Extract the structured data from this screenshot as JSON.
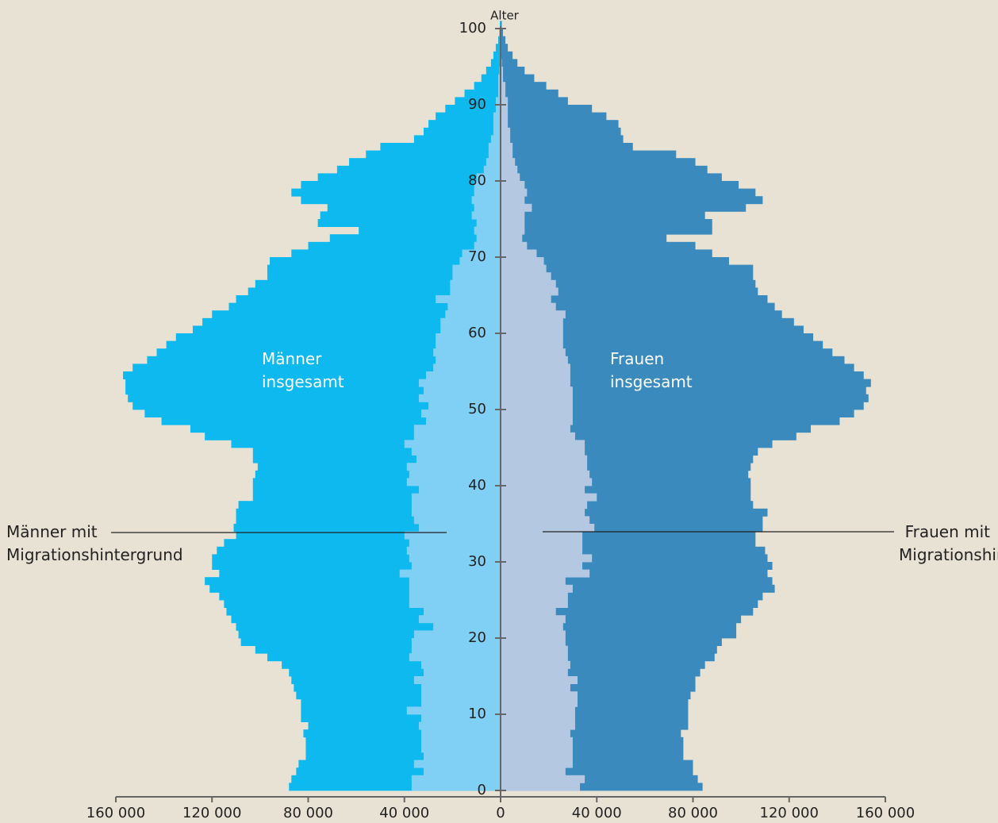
{
  "chart_data": {
    "type": "pyramid",
    "y_label": "Alter",
    "ages": [
      0,
      1,
      2,
      3,
      4,
      5,
      6,
      7,
      8,
      9,
      10,
      11,
      12,
      13,
      14,
      15,
      16,
      17,
      18,
      19,
      20,
      21,
      22,
      23,
      24,
      25,
      26,
      27,
      28,
      29,
      30,
      31,
      32,
      33,
      34,
      35,
      36,
      37,
      38,
      39,
      40,
      41,
      42,
      43,
      44,
      45,
      46,
      47,
      48,
      49,
      50,
      51,
      52,
      53,
      54,
      55,
      56,
      57,
      58,
      59,
      60,
      61,
      62,
      63,
      64,
      65,
      66,
      67,
      68,
      69,
      70,
      71,
      72,
      73,
      74,
      75,
      76,
      77,
      78,
      79,
      80,
      81,
      82,
      83,
      84,
      85,
      86,
      87,
      88,
      89,
      90,
      91,
      92,
      93,
      94,
      95,
      96,
      97,
      98,
      99,
      100
    ],
    "series": [
      {
        "name": "Männer insgesamt",
        "color": "#0db9ee",
        "values": [
          88000,
          87000,
          85000,
          84000,
          81000,
          81000,
          81000,
          82000,
          80000,
          83000,
          83000,
          83000,
          85000,
          86000,
          87000,
          88000,
          91000,
          97000,
          102000,
          108000,
          109000,
          110000,
          112000,
          114000,
          115000,
          117000,
          121000,
          123000,
          117000,
          120000,
          120000,
          118000,
          115000,
          110000,
          111000,
          110000,
          110000,
          109000,
          103000,
          103000,
          103000,
          102000,
          101000,
          103000,
          103000,
          112000,
          123000,
          129000,
          141000,
          148000,
          153000,
          155000,
          156000,
          156000,
          157000,
          153000,
          147000,
          143000,
          139000,
          135000,
          128000,
          124000,
          120000,
          113000,
          110000,
          105000,
          102000,
          97000,
          97000,
          96000,
          87000,
          80000,
          71000,
          59000,
          76000,
          75000,
          72000,
          83000,
          87000,
          83000,
          76000,
          68000,
          63000,
          56000,
          50000,
          36000,
          32000,
          30000,
          27000,
          23000,
          19000,
          15000,
          11000,
          8000,
          6000,
          4000,
          3000,
          2000,
          1000,
          500,
          300
        ]
      },
      {
        "name": "Männer mit Migrationshintergrund",
        "color": "#80cff4",
        "values": [
          37000,
          37000,
          32000,
          36000,
          32000,
          33000,
          33000,
          33000,
          34000,
          33000,
          39000,
          33000,
          33000,
          33000,
          36000,
          32000,
          33000,
          38000,
          37000,
          37000,
          36000,
          28000,
          34000,
          32000,
          38000,
          38000,
          38000,
          38000,
          42000,
          37000,
          38000,
          39000,
          38000,
          40000,
          34000,
          36000,
          37000,
          37000,
          37000,
          34000,
          39000,
          38000,
          39000,
          35000,
          37000,
          40000,
          36000,
          36000,
          31000,
          33000,
          30000,
          34000,
          32000,
          34000,
          31000,
          28000,
          27000,
          28000,
          27000,
          27000,
          25000,
          25000,
          23000,
          22000,
          27000,
          21000,
          21000,
          20000,
          20000,
          17000,
          16000,
          11000,
          10000,
          11000,
          10000,
          12000,
          11000,
          12000,
          11000,
          11000,
          10000,
          7000,
          6000,
          5000,
          5000,
          4000,
          3000,
          3000,
          3000,
          2000,
          2000,
          1000,
          1000,
          1000,
          500,
          300,
          200,
          100,
          0,
          0,
          0
        ]
      },
      {
        "name": "Frauen insgesamt",
        "color": "#3a8abe",
        "values": [
          84000,
          82000,
          80000,
          80000,
          76000,
          76000,
          76000,
          75000,
          78000,
          78000,
          78000,
          78000,
          79000,
          81000,
          81000,
          83000,
          85000,
          89000,
          90000,
          92000,
          98000,
          98000,
          100000,
          105000,
          107000,
          109000,
          114000,
          113000,
          111000,
          113000,
          111000,
          110000,
          106000,
          106000,
          109000,
          109000,
          111000,
          105000,
          104000,
          104000,
          104000,
          103000,
          104000,
          105000,
          107000,
          113000,
          123000,
          129000,
          141000,
          147000,
          151000,
          153000,
          152000,
          154000,
          151000,
          147000,
          143000,
          138000,
          134000,
          130000,
          126000,
          122000,
          117000,
          114000,
          111000,
          107000,
          106000,
          105000,
          105000,
          95000,
          88000,
          81000,
          69000,
          88000,
          88000,
          85000,
          102000,
          109000,
          106000,
          99000,
          92000,
          86000,
          81000,
          73000,
          55000,
          51000,
          50000,
          49000,
          44000,
          38000,
          28000,
          24000,
          19000,
          14000,
          10000,
          7000,
          5000,
          3000,
          2000,
          1000,
          500
        ]
      },
      {
        "name": "Frauen mit Migrationshintergrund",
        "color": "#b4c8e2",
        "values": [
          33000,
          35000,
          27000,
          30000,
          30000,
          30000,
          30000,
          29000,
          31000,
          31000,
          31000,
          32000,
          32000,
          29000,
          32000,
          28000,
          29000,
          28000,
          28000,
          27000,
          27000,
          26000,
          27000,
          23000,
          28000,
          28000,
          30000,
          27000,
          37000,
          34000,
          38000,
          34000,
          34000,
          34000,
          39000,
          37000,
          35000,
          36000,
          40000,
          35000,
          38000,
          37000,
          36000,
          36000,
          35000,
          35000,
          31000,
          29000,
          30000,
          30000,
          30000,
          30000,
          30000,
          29000,
          29000,
          29000,
          28000,
          27000,
          26000,
          26000,
          26000,
          26000,
          27000,
          23000,
          21000,
          24000,
          23000,
          21000,
          19000,
          18000,
          15000,
          11000,
          9000,
          10000,
          10000,
          10000,
          13000,
          10000,
          11000,
          10000,
          8000,
          7000,
          6000,
          5000,
          5000,
          4000,
          4000,
          3000,
          3000,
          3000,
          3000,
          2000,
          2000,
          1000,
          1000,
          500,
          300,
          200,
          100,
          0,
          0
        ]
      }
    ],
    "xlim": [
      -160000,
      160000
    ],
    "xticks": [
      {
        "value": -160000,
        "label": "160 000"
      },
      {
        "value": -120000,
        "label": "120 000"
      },
      {
        "value": -80000,
        "label": "80 000"
      },
      {
        "value": -40000,
        "label": "40 000"
      },
      0,
      {
        "value": 40000,
        "label": "40 000"
      },
      {
        "value": 80000,
        "label": "80 000"
      },
      {
        "value": 120000,
        "label": "120 000"
      },
      {
        "value": 160000,
        "label": "160 000"
      }
    ],
    "ylim": [
      0,
      100
    ],
    "yticks": [
      0,
      10,
      20,
      30,
      40,
      50,
      60,
      70,
      80,
      90,
      100
    ]
  }
}
